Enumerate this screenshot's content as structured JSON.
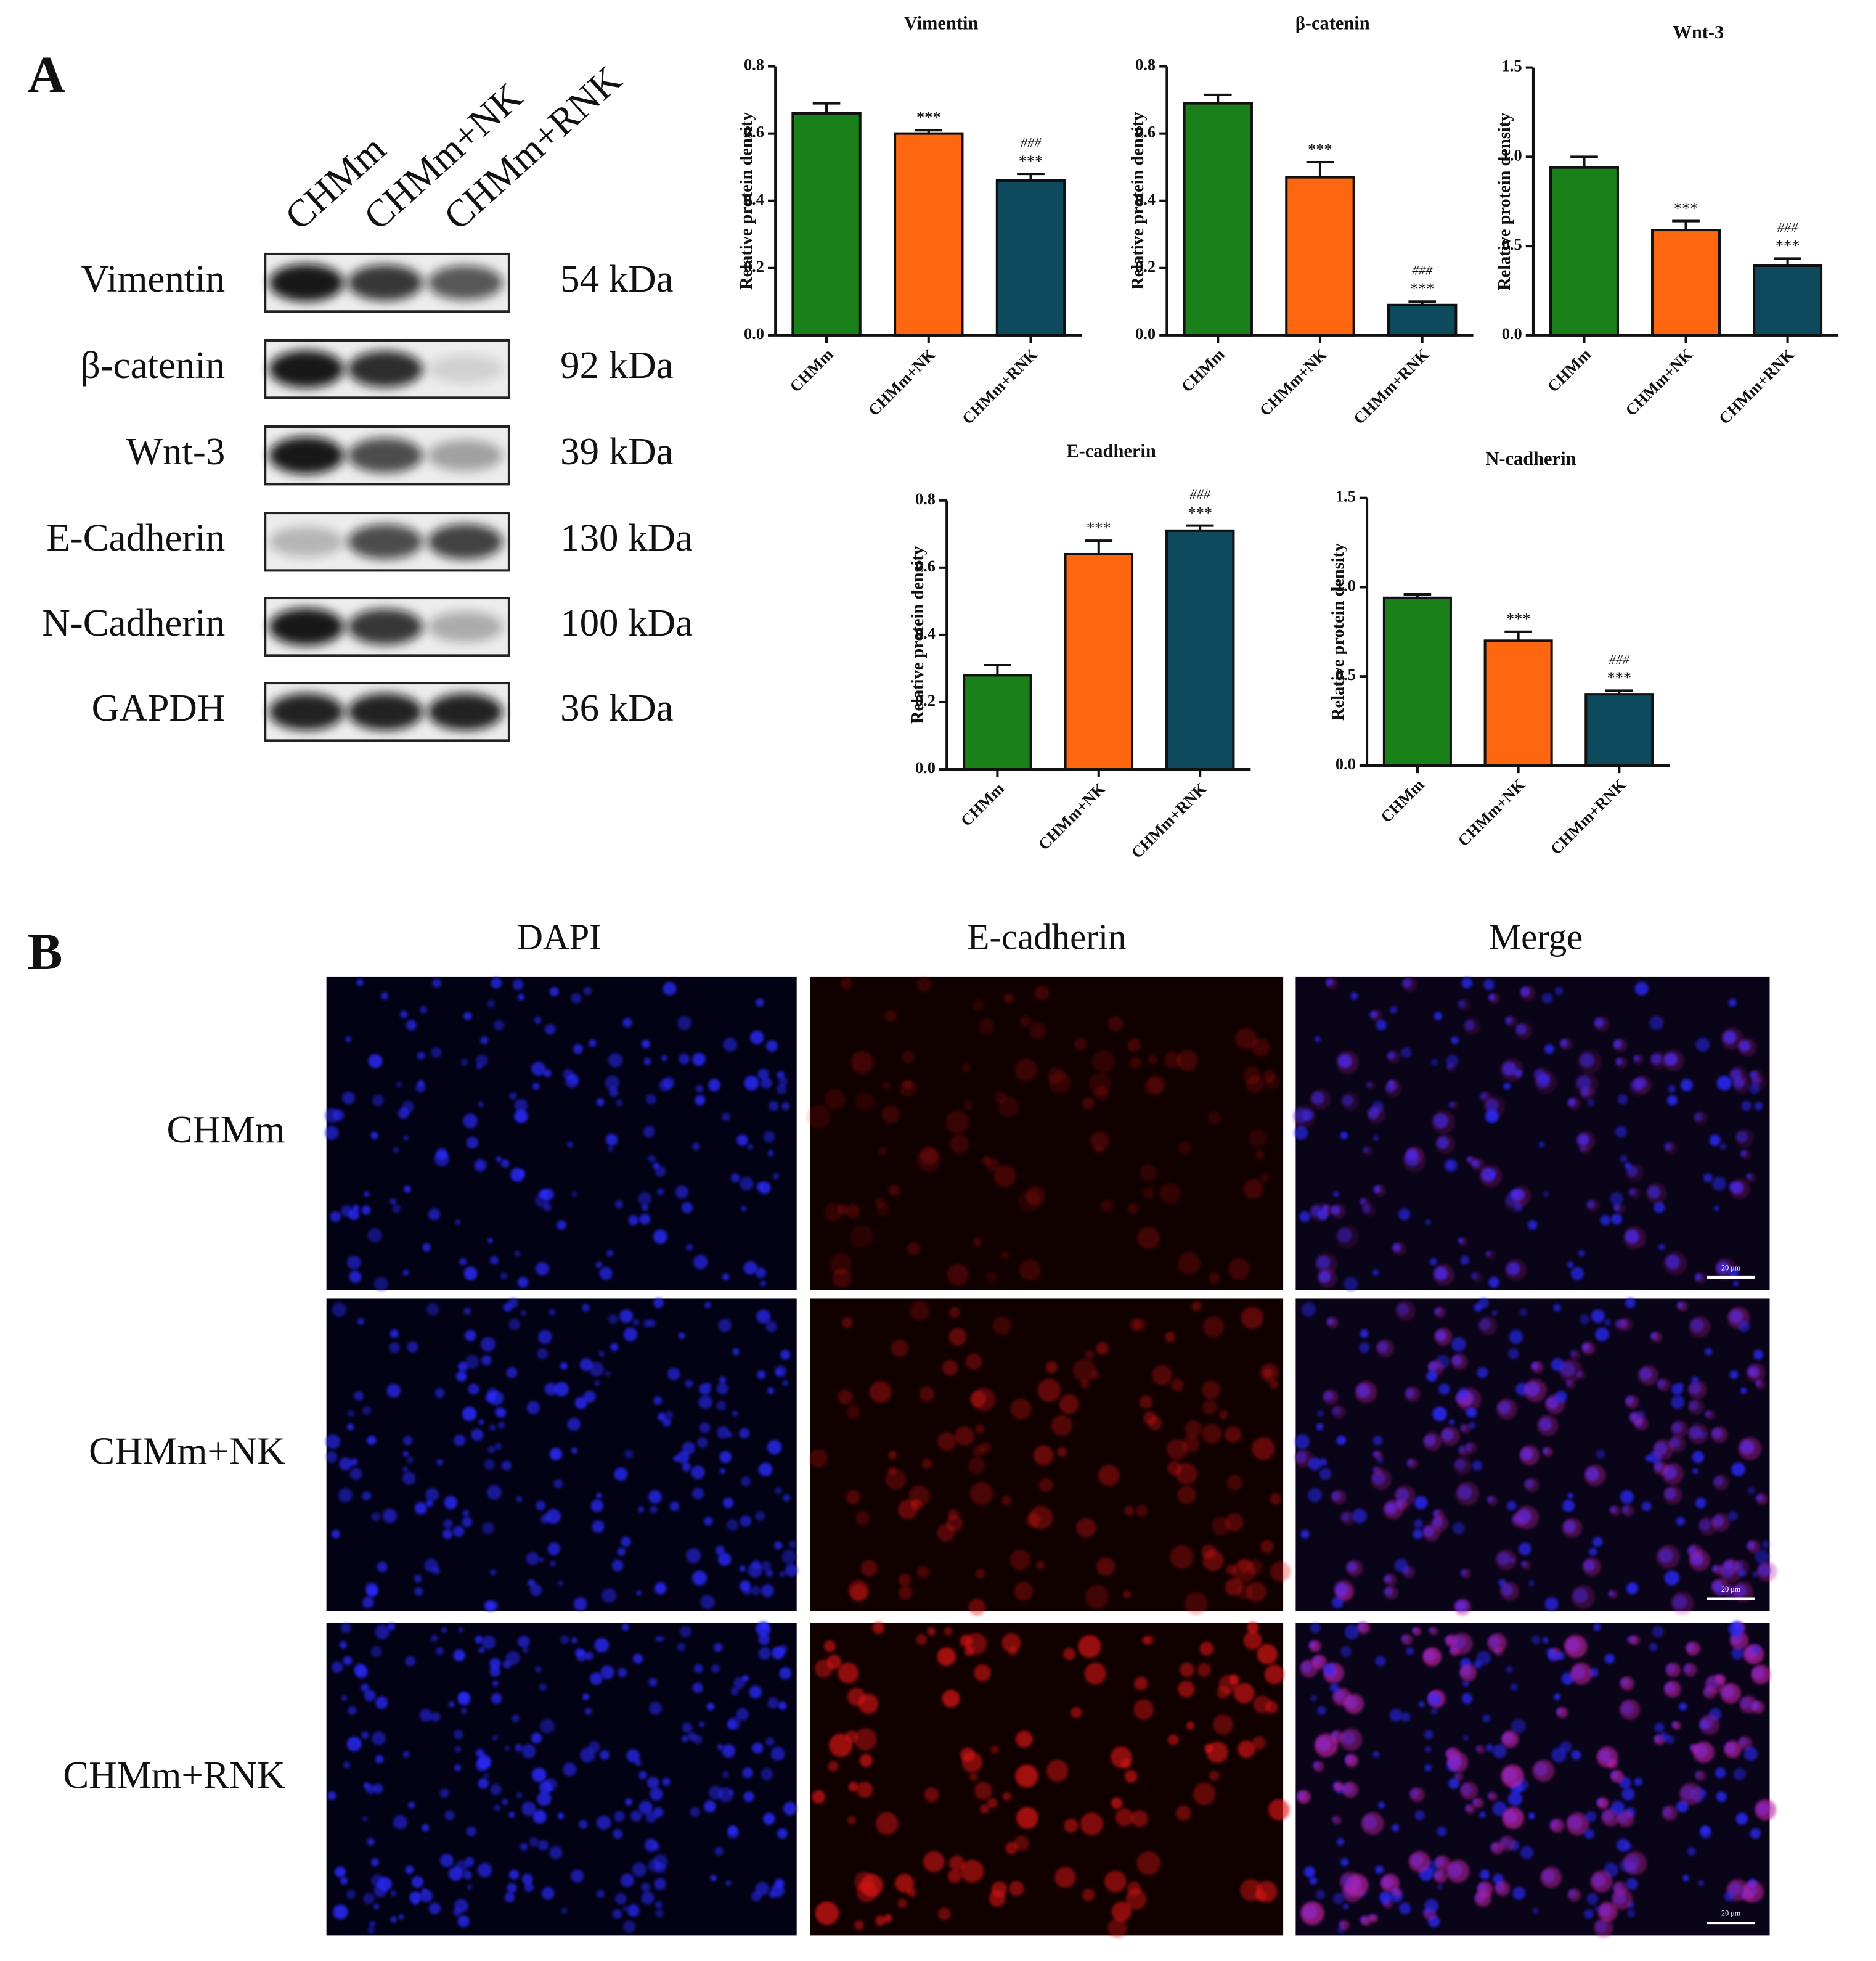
{
  "panel_a": {
    "label": "A",
    "lanes": [
      "CHMm",
      "CHMm+NK",
      "CHMm+RNK"
    ],
    "blots": [
      {
        "protein": "Vimentin",
        "size": "54 kDa"
      },
      {
        "protein": "β-catenin",
        "size": "92 kDa"
      },
      {
        "protein": "Wnt-3",
        "size": "39 kDa"
      },
      {
        "protein": "E-Cadherin",
        "size": "130 kDa"
      },
      {
        "protein": "N-Cadherin",
        "size": "100 kDa"
      },
      {
        "protein": "GAPDH",
        "size": "36 kDa"
      }
    ]
  },
  "chart_data": [
    {
      "type": "bar",
      "title": "Vimentin",
      "ylabel": "Relative protein density",
      "categories": [
        "CHMm",
        "CHMm+NK",
        "CHMm+RNK"
      ],
      "values": [
        0.66,
        0.6,
        0.46
      ],
      "errors": [
        0.03,
        0.01,
        0.02
      ],
      "colors": [
        "#1a801a",
        "#ff6610",
        "#0d4a5e"
      ],
      "marks_vs_chmm": [
        null,
        "***",
        "***"
      ],
      "marks_vs_nk": [
        null,
        null,
        "###"
      ],
      "ylim": [
        0,
        0.8
      ],
      "yticks": [
        {
          "value": 0,
          "label": "0.0"
        },
        0.2,
        0.4,
        0.6,
        0.8
      ]
    },
    {
      "type": "bar",
      "title": "β-catenin",
      "ylabel": "Relative protein density",
      "categories": [
        "CHMm",
        "CHMm+NK",
        "CHMm+RNK"
      ],
      "values": [
        0.69,
        0.47,
        0.09
      ],
      "errors": [
        0.025,
        0.045,
        0.01
      ],
      "colors": [
        "#1a801a",
        "#ff6610",
        "#0d4a5e"
      ],
      "marks_vs_chmm": [
        null,
        "***",
        "***"
      ],
      "marks_vs_nk": [
        null,
        null,
        "###"
      ],
      "ylim": [
        0,
        0.8
      ],
      "yticks": [
        {
          "value": 0,
          "label": "0.0"
        },
        0.2,
        0.4,
        0.6,
        0.8
      ]
    },
    {
      "type": "bar",
      "title": "Wnt-3",
      "ylabel": "Relative protein density",
      "categories": [
        "CHMm",
        "CHMm+NK",
        "CHMm+RNK"
      ],
      "values": [
        0.94,
        0.59,
        0.39
      ],
      "errors": [
        0.06,
        0.05,
        0.04
      ],
      "colors": [
        "#1a801a",
        "#ff6610",
        "#0d4a5e"
      ],
      "marks_vs_chmm": [
        null,
        "***",
        "***"
      ],
      "marks_vs_nk": [
        null,
        null,
        "###"
      ],
      "ylim": [
        0,
        1.5
      ],
      "yticks": [
        {
          "value": 0,
          "label": "0.0"
        },
        0.5,
        {
          "value": 1,
          "label": "1.0"
        },
        1.5
      ]
    },
    {
      "type": "bar",
      "title": "E-cadherin",
      "ylabel": "Relative protein density",
      "categories": [
        "CHMm",
        "CHMm+NK",
        "CHMm+RNK"
      ],
      "values": [
        0.28,
        0.64,
        0.71
      ],
      "errors": [
        0.03,
        0.04,
        0.015
      ],
      "colors": [
        "#1a801a",
        "#ff6610",
        "#0d4a5e"
      ],
      "marks_vs_chmm": [
        null,
        "***",
        "***"
      ],
      "marks_vs_nk": [
        null,
        null,
        "###"
      ],
      "ylim": [
        0,
        0.8
      ],
      "yticks": [
        {
          "value": 0,
          "label": "0.0"
        },
        0.2,
        0.4,
        0.6,
        0.8
      ]
    },
    {
      "type": "bar",
      "title": "N-cadherin",
      "ylabel": "Relative protein density",
      "categories": [
        "CHMm",
        "CHMm+NK",
        "CHMm+RNK"
      ],
      "values": [
        0.94,
        0.7,
        0.4
      ],
      "errors": [
        0.02,
        0.05,
        0.02
      ],
      "colors": [
        "#1a801a",
        "#ff6610",
        "#0d4a5e"
      ],
      "marks_vs_chmm": [
        null,
        "***",
        "***"
      ],
      "marks_vs_nk": [
        null,
        null,
        "###"
      ],
      "ylim": [
        0,
        1.5
      ],
      "yticks": [
        {
          "value": 0,
          "label": "0.0"
        },
        0.5,
        {
          "value": 1,
          "label": "1.0"
        },
        1.5
      ]
    }
  ],
  "panel_b": {
    "label": "B",
    "columns": [
      "DAPI",
      "E-cadherin",
      "Merge"
    ],
    "rows": [
      "CHMm",
      "CHMm+NK",
      "CHMm+RNK"
    ],
    "scale_bar": "20 μm"
  }
}
